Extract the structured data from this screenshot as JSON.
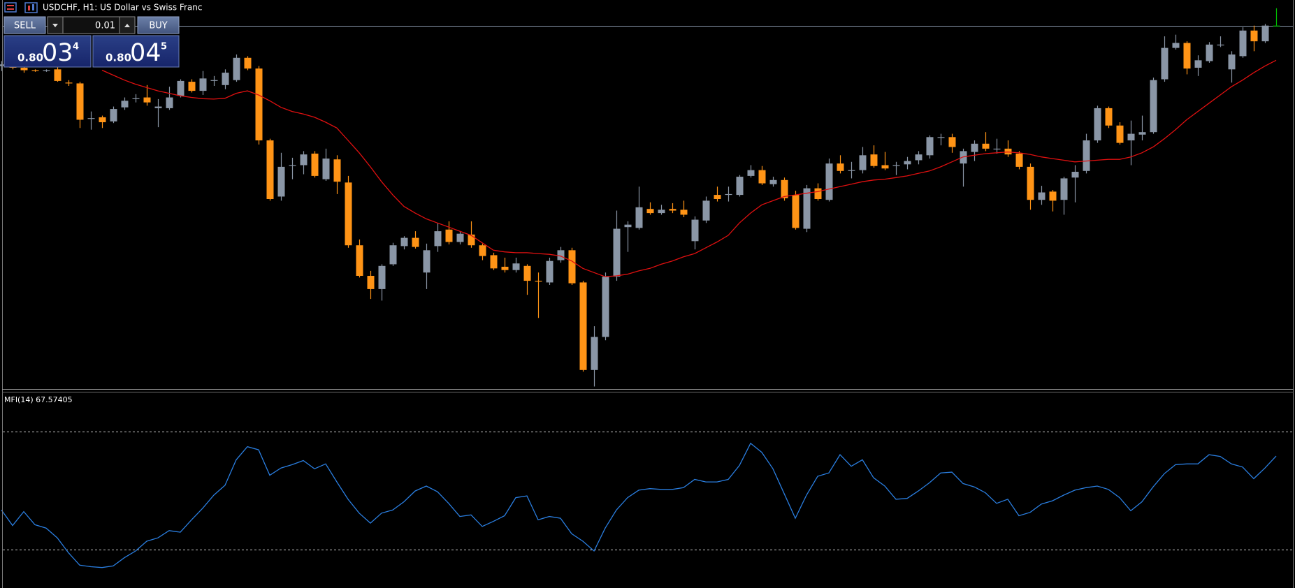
{
  "chart_data": [
    {
      "type": "candlestick",
      "title": "USDCHF, H1:  US Dollar vs Swiss Franc",
      "ylim": [
        0.79154,
        0.80096
      ],
      "up_color": "#8a96a6",
      "down_color": "#ff9416",
      "current_bar_color": "#00c000",
      "ma_color": "#e01010",
      "bid_line_color": "#8c9aae",
      "bid_price": 0.80034,
      "open": [
        0.79936,
        0.7994,
        0.79932,
        0.79926,
        0.79924,
        0.79928,
        0.79896,
        0.79894,
        0.7981,
        0.79812,
        0.79802,
        0.79836,
        0.79858,
        0.7986,
        0.79834,
        0.79834,
        0.79864,
        0.79898,
        0.79876,
        0.79902,
        0.7989,
        0.79902,
        0.79956,
        0.7993,
        0.79756,
        0.7962,
        0.79696,
        0.79696,
        0.79724,
        0.79662,
        0.7971,
        0.79654,
        0.79502,
        0.79428,
        0.79396,
        0.79456,
        0.795,
        0.7952,
        0.79436,
        0.795,
        0.7954,
        0.7951,
        0.79528,
        0.79502,
        0.79478,
        0.7945,
        0.79442,
        0.79452,
        0.79416,
        0.79412,
        0.79466,
        0.7949,
        0.79412,
        0.792,
        0.7928,
        0.79426,
        0.79546,
        0.79544,
        0.7959,
        0.7958,
        0.7959,
        0.79588,
        0.79512,
        0.79562,
        0.79624,
        0.79626,
        0.79624,
        0.7967,
        0.79684,
        0.7965,
        0.7966,
        0.79624,
        0.79542,
        0.7964,
        0.79612,
        0.797,
        0.79684,
        0.79684,
        0.79722,
        0.79696,
        0.79696,
        0.79698,
        0.79708,
        0.7972,
        0.79764,
        0.79764,
        0.797,
        0.79728,
        0.79748,
        0.79736,
        0.79736,
        0.79724,
        0.79692,
        0.79612,
        0.79632,
        0.79612,
        0.79666,
        0.79682,
        0.79756,
        0.79834,
        0.79792,
        0.79756,
        0.7977,
        0.79776,
        0.79904,
        0.7998,
        0.79992,
        0.79932,
        0.79948,
        0.79988,
        0.79928,
        0.7996,
        0.80022,
        0.79996,
        0.80034
      ],
      "high": [
        0.79948,
        0.79944,
        0.79936,
        0.79928,
        0.79928,
        0.79936,
        0.79902,
        0.79898,
        0.79826,
        0.79816,
        0.79838,
        0.7986,
        0.79868,
        0.7989,
        0.79856,
        0.79886,
        0.79904,
        0.79904,
        0.79924,
        0.79912,
        0.79928,
        0.79964,
        0.7996,
        0.79936,
        0.7976,
        0.79726,
        0.79714,
        0.7973,
        0.7973,
        0.79736,
        0.7972,
        0.7967,
        0.79516,
        0.7944,
        0.79456,
        0.79508,
        0.79524,
        0.79536,
        0.79506,
        0.79556,
        0.7956,
        0.79536,
        0.7956,
        0.79506,
        0.79484,
        0.79472,
        0.79472,
        0.79456,
        0.79436,
        0.79472,
        0.79498,
        0.79496,
        0.79416,
        0.79306,
        0.79436,
        0.79586,
        0.7956,
        0.79644,
        0.79606,
        0.796,
        0.79604,
        0.7961,
        0.79572,
        0.7962,
        0.79644,
        0.79644,
        0.79672,
        0.79696,
        0.79694,
        0.79668,
        0.79666,
        0.79634,
        0.79648,
        0.79652,
        0.79712,
        0.7972,
        0.79704,
        0.7974,
        0.79744,
        0.79728,
        0.79704,
        0.79716,
        0.7973,
        0.79768,
        0.79772,
        0.79772,
        0.79736,
        0.79756,
        0.79776,
        0.7976,
        0.79756,
        0.7973,
        0.797,
        0.79646,
        0.79636,
        0.79668,
        0.79696,
        0.79772,
        0.7984,
        0.79838,
        0.798,
        0.79804,
        0.79816,
        0.79908,
        0.80008,
        0.80012,
        0.79996,
        0.79962,
        0.79994,
        0.80008,
        0.79972,
        0.8003,
        0.80034,
        0.80038,
        0.80076
      ],
      "low": [
        0.79924,
        0.79928,
        0.7992,
        0.79922,
        0.79922,
        0.79898,
        0.79888,
        0.79786,
        0.79782,
        0.79786,
        0.79798,
        0.7983,
        0.79848,
        0.7984,
        0.79788,
        0.7983,
        0.7986,
        0.79872,
        0.79866,
        0.79888,
        0.7988,
        0.79898,
        0.79926,
        0.79746,
        0.7961,
        0.7961,
        0.79662,
        0.79674,
        0.79666,
        0.79658,
        0.79626,
        0.79496,
        0.79424,
        0.79372,
        0.79368,
        0.79452,
        0.79492,
        0.79494,
        0.79396,
        0.79486,
        0.79504,
        0.79504,
        0.79496,
        0.79466,
        0.79442,
        0.79436,
        0.79436,
        0.79382,
        0.79326,
        0.79406,
        0.7946,
        0.79406,
        0.79196,
        0.7916,
        0.79272,
        0.79416,
        0.79486,
        0.7954,
        0.79576,
        0.79576,
        0.7958,
        0.7957,
        0.79492,
        0.79556,
        0.79608,
        0.79608,
        0.7962,
        0.79666,
        0.79648,
        0.79644,
        0.7961,
        0.7954,
        0.79534,
        0.7961,
        0.79608,
        0.79676,
        0.79664,
        0.79676,
        0.7969,
        0.79684,
        0.79672,
        0.79686,
        0.79698,
        0.79712,
        0.79744,
        0.79726,
        0.79644,
        0.79706,
        0.7973,
        0.79724,
        0.79716,
        0.79686,
        0.79588,
        0.796,
        0.79584,
        0.79576,
        0.79606,
        0.79676,
        0.7975,
        0.79786,
        0.79746,
        0.79696,
        0.79756,
        0.79772,
        0.79898,
        0.79976,
        0.79916,
        0.79912,
        0.79944,
        0.79982,
        0.79896,
        0.79956,
        0.79972,
        0.79992,
        0.80034
      ],
      "close": [
        0.7994,
        0.79932,
        0.79926,
        0.79924,
        0.79926,
        0.799,
        0.79894,
        0.79806,
        0.7981,
        0.798,
        0.79832,
        0.79852,
        0.79858,
        0.79848,
        0.79838,
        0.7986,
        0.799,
        0.79876,
        0.79906,
        0.79902,
        0.7992,
        0.79956,
        0.7993,
        0.79756,
        0.79614,
        0.79692,
        0.79696,
        0.79722,
        0.7967,
        0.79712,
        0.79656,
        0.79502,
        0.79428,
        0.79396,
        0.79452,
        0.79502,
        0.7952,
        0.79498,
        0.7949,
        0.79536,
        0.7951,
        0.7953,
        0.79502,
        0.79476,
        0.79446,
        0.79442,
        0.79458,
        0.79416,
        0.79414,
        0.79464,
        0.7949,
        0.7941,
        0.792,
        0.7928,
        0.79426,
        0.79542,
        0.79552,
        0.79594,
        0.7958,
        0.79588,
        0.79586,
        0.79576,
        0.79564,
        0.7961,
        0.79614,
        0.79626,
        0.79668,
        0.79684,
        0.79652,
        0.7966,
        0.79616,
        0.79544,
        0.7964,
        0.79614,
        0.797,
        0.79682,
        0.79684,
        0.7972,
        0.79694,
        0.79688,
        0.79696,
        0.79706,
        0.79722,
        0.79764,
        0.79764,
        0.7974,
        0.7973,
        0.79748,
        0.79736,
        0.79736,
        0.79722,
        0.79692,
        0.79612,
        0.7963,
        0.7961,
        0.79664,
        0.7968,
        0.79756,
        0.79834,
        0.79792,
        0.7975,
        0.79772,
        0.79776,
        0.79902,
        0.7998,
        0.79992,
        0.7993,
        0.7995,
        0.79988,
        0.79988,
        0.79964,
        0.80022,
        0.79996,
        0.80034,
        0.80034
      ],
      "ma": [
        null,
        null,
        null,
        null,
        null,
        null,
        null,
        null,
        null,
        0.79926,
        0.79914,
        0.79902,
        0.79892,
        0.79884,
        0.79876,
        0.7987,
        0.79864,
        0.7986,
        0.79857,
        0.79856,
        0.79858,
        0.7987,
        0.79876,
        0.79866,
        0.79852,
        0.79836,
        0.79826,
        0.7982,
        0.79812,
        0.798,
        0.79786,
        0.79756,
        0.79726,
        0.79692,
        0.79656,
        0.79624,
        0.79596,
        0.7958,
        0.79566,
        0.79556,
        0.79546,
        0.79536,
        0.79526,
        0.79508,
        0.7949,
        0.79486,
        0.79484,
        0.79484,
        0.79482,
        0.7948,
        0.79476,
        0.79464,
        0.79446,
        0.79436,
        0.79426,
        0.79428,
        0.79432,
        0.7944,
        0.79446,
        0.79456,
        0.79464,
        0.79474,
        0.79482,
        0.79496,
        0.7951,
        0.79526,
        0.79556,
        0.7958,
        0.796,
        0.7961,
        0.7962,
        0.79624,
        0.79628,
        0.79632,
        0.79638,
        0.79644,
        0.7965,
        0.79656,
        0.7966,
        0.79662,
        0.79666,
        0.7967,
        0.79676,
        0.79682,
        0.79692,
        0.79704,
        0.79716,
        0.7972,
        0.79724,
        0.79726,
        0.79728,
        0.79726,
        0.79722,
        0.79716,
        0.79712,
        0.79708,
        0.79704,
        0.79706,
        0.79708,
        0.7971,
        0.7971,
        0.79716,
        0.79726,
        0.7974,
        0.7976,
        0.79782,
        0.79806,
        0.79826,
        0.79846,
        0.79866,
        0.79886,
        0.79902,
        0.7992,
        0.79936,
        0.7995
      ]
    },
    {
      "type": "line",
      "title": "MFI(14) 67.57405",
      "ylim": [
        0,
        100
      ],
      "levels": [
        20,
        80
      ],
      "color": "#2a7ee0",
      "level_color": "#c8c8c8",
      "values": [
        40.1,
        32.2,
        39.3,
        32.6,
        30.9,
        25.9,
        18.3,
        12.0,
        11.2,
        10.8,
        11.6,
        15.8,
        19.2,
        24.2,
        25.9,
        29.6,
        28.8,
        35.1,
        41.0,
        47.7,
        52.7,
        65.7,
        72.4,
        70.8,
        57.8,
        61.5,
        63.2,
        65.3,
        61.1,
        63.6,
        54.4,
        45.6,
        38.5,
        33.4,
        38.5,
        40.1,
        44.3,
        49.8,
        52.3,
        49.4,
        43.5,
        36.8,
        37.6,
        31.7,
        34.3,
        37.2,
        46.4,
        47.3,
        35.1,
        36.8,
        35.9,
        28.0,
        24.2,
        19.2,
        30.9,
        40.1,
        46.4,
        50.2,
        51.0,
        50.6,
        50.6,
        51.5,
        55.7,
        54.4,
        54.4,
        55.7,
        62.8,
        74.1,
        69.5,
        61.1,
        48.5,
        35.9,
        47.7,
        57.3,
        59.0,
        68.3,
        62.4,
        65.7,
        56.5,
        52.3,
        45.6,
        46.0,
        49.8,
        54.0,
        59.0,
        59.4,
        53.6,
        51.9,
        48.9,
        43.5,
        45.6,
        37.2,
        38.9,
        43.1,
        44.8,
        47.7,
        50.2,
        51.5,
        52.3,
        50.6,
        46.4,
        39.7,
        44.3,
        51.9,
        58.6,
        63.2,
        63.6,
        63.6,
        68.3,
        67.4,
        63.6,
        62.0,
        56.1,
        61.5,
        67.57405
      ]
    }
  ],
  "trade_panel": {
    "sell": "SELL",
    "buy": "BUY",
    "lot": "0.01",
    "bid": {
      "prefix": "0.80",
      "big": "03",
      "point": "4"
    },
    "ask": {
      "prefix": "0.80",
      "big": "04",
      "point": "5"
    }
  }
}
